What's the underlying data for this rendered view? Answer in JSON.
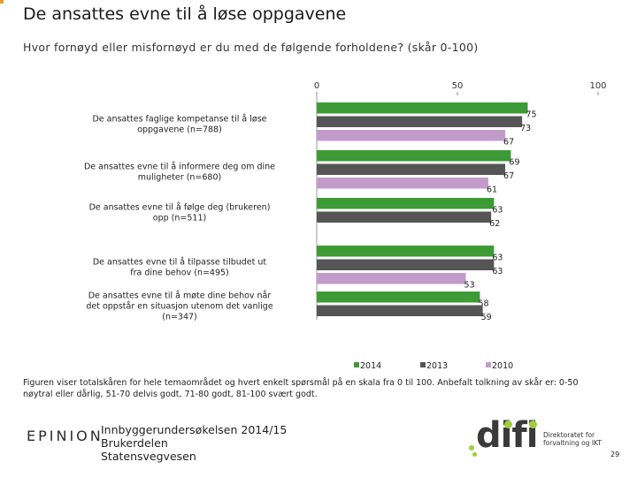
{
  "title": "De ansattes evne til å løse oppgavene",
  "subtitle": "Hvor fornøyd eller misfornøyd er du med de følgende forholdene? (skår 0-100)",
  "chart_data": {
    "type": "bar",
    "orientation": "horizontal",
    "xlim": [
      0,
      100
    ],
    "xticks": [
      "0",
      "50",
      "100"
    ],
    "grid": false,
    "legend_position": "bottom",
    "categories": [
      "De ansattes faglige kompetanse til å løse oppgavene (n=788)",
      "De ansattes evne til å informere deg om dine muligheter (n=680)",
      "De ansattes evne til å følge deg (brukeren) opp (n=511)",
      "De ansattes evne til å tilpasse tilbudet ut fra dine behov (n=495)",
      "De ansattes evne til å møte dine behov når det oppstår en situasjon utenom det vanlige (n=347)"
    ],
    "series": [
      {
        "name": "2014",
        "color": "#3d9b35",
        "values": [
          75,
          69,
          63,
          63,
          58
        ]
      },
      {
        "name": "2013",
        "color": "#555555",
        "values": [
          73,
          67,
          62,
          63,
          59
        ]
      },
      {
        "name": "2010",
        "color": "#c39bcb",
        "values": [
          67,
          61,
          null,
          53,
          null
        ]
      }
    ]
  },
  "footnote": "Figuren viser totalskåren for hele temaområdet og hvert enkelt spørsmål på en skala fra 0 til 100. Anbefalt tolkning av skår er: 0-50 nøytral eller dårlig, 51-70 delvis godt, 71-80 godt, 81-100 svært godt.",
  "footer": {
    "epinion_logo": "EPINION",
    "project_lines": [
      "Innbyggerundersøkelsen 2014/15",
      "Brukerdelen",
      "Statensvegvesen"
    ],
    "difi_logo": "difi",
    "difi_sub_lines": [
      "Direktoratet for",
      "forvaltning og IKT"
    ],
    "page_number": "29"
  }
}
